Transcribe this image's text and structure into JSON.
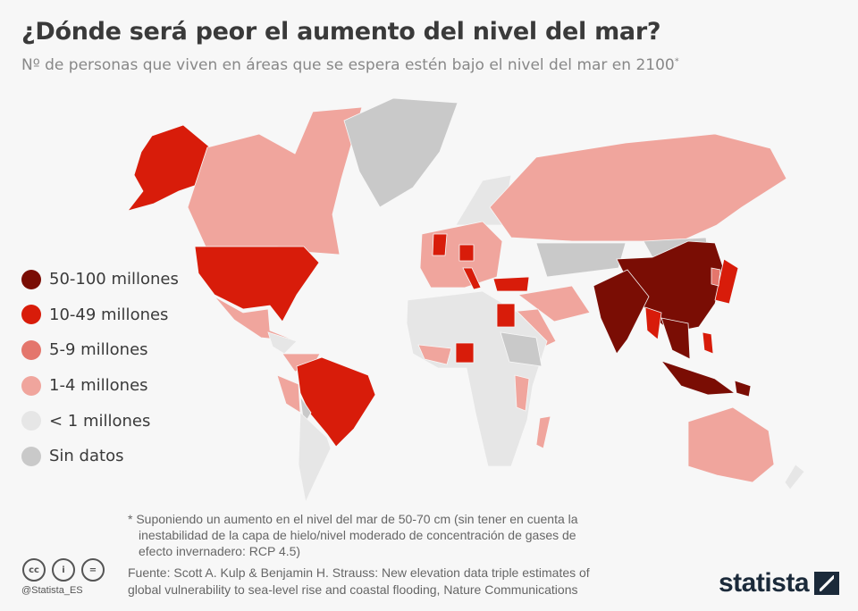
{
  "title": "¿Dónde será peor el aumento del nivel del mar?",
  "subtitle": "Nº de personas que viven en áreas que se espera estén bajo el nivel del mar en 2100",
  "subtitle_mark": "*",
  "legend": [
    {
      "label": "50-100 millones",
      "color": "#7a0d04"
    },
    {
      "label": "10-49 millones",
      "color": "#d81c0a"
    },
    {
      "label": "5-9 millones",
      "color": "#e4766c"
    },
    {
      "label": "1-4 millones",
      "color": "#f0a59d"
    },
    {
      "label": "< 1 millones",
      "color": "#e6e6e6"
    },
    {
      "label": "Sin datos",
      "color": "#c9c9c9"
    }
  ],
  "footnote": {
    "line1": "* Suponiendo un aumento en el nivel del mar de 50-70 cm (sin tener en cuenta la",
    "line2": "inestabilidad de la capa de hielo/nivel moderado de concentración de gases de",
    "line3": "efecto invernadero: RCP 4.5)"
  },
  "source": {
    "line1": "Fuente: Scott A. Kulp & Benjamin H. Strauss: New elevation data triple estimates of",
    "line2": "global vulnerability to sea-level rise and coastal flooding, Nature Communications"
  },
  "license_icons": [
    "cc",
    "by",
    "nd"
  ],
  "license_labels": {
    "cc": "cc",
    "by": "i",
    "nd": "="
  },
  "handle": "@Statista_ES",
  "brand": "statista"
}
